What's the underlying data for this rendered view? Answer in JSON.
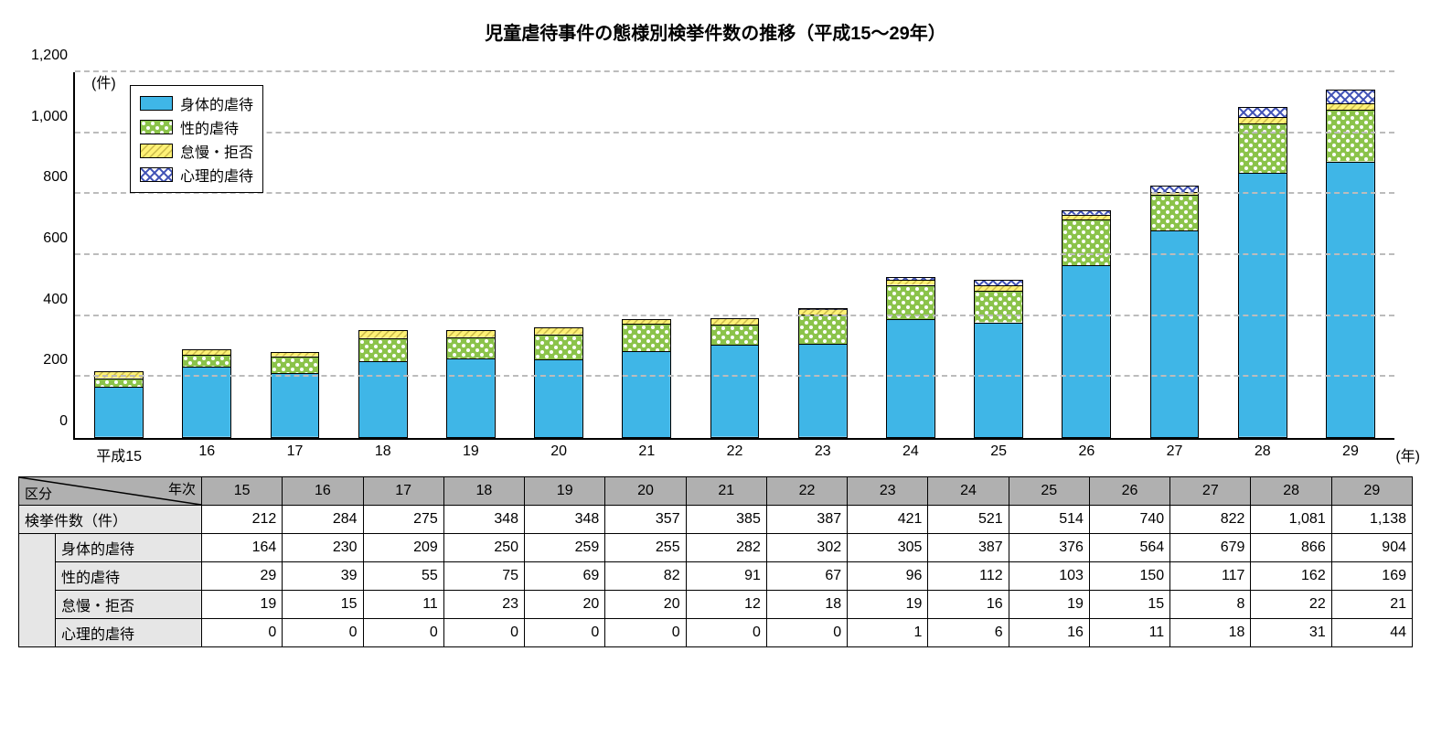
{
  "title": "児童虐待事件の態様別検挙件数の推移（平成15～29年）",
  "chart": {
    "type": "stacked-bar",
    "y_unit_label": "(件)",
    "x_unit_label": "(年)",
    "ylim": [
      0,
      1200
    ],
    "ytick_step": 200,
    "yticks": [
      "0",
      "200",
      "400",
      "600",
      "800",
      "1,000",
      "1,200"
    ],
    "grid_color": "#bcbcbc",
    "background_color": "#ffffff",
    "bar_border": "#000000",
    "x_prefix_first": "平成",
    "years": [
      "15",
      "16",
      "17",
      "18",
      "19",
      "20",
      "21",
      "22",
      "23",
      "24",
      "25",
      "26",
      "27",
      "28",
      "29"
    ],
    "series": [
      {
        "key": "physical",
        "label": "身体的虐待",
        "fill": "#3fb6e7",
        "pattern": "solid"
      },
      {
        "key": "sexual",
        "label": "性的虐待",
        "fill": "#8bc34a",
        "pattern": "dots"
      },
      {
        "key": "neglect",
        "label": "怠慢・拒否",
        "fill": "#fff176",
        "pattern": "diag"
      },
      {
        "key": "psych",
        "label": "心理的虐待",
        "fill": "#3f51b5",
        "pattern": "cross"
      }
    ],
    "values": {
      "physical": [
        164,
        230,
        209,
        250,
        259,
        255,
        282,
        302,
        305,
        387,
        376,
        564,
        679,
        866,
        904
      ],
      "sexual": [
        29,
        39,
        55,
        75,
        69,
        82,
        91,
        67,
        96,
        112,
        103,
        150,
        117,
        162,
        169
      ],
      "neglect": [
        19,
        15,
        11,
        23,
        20,
        20,
        12,
        18,
        19,
        16,
        19,
        15,
        8,
        22,
        21
      ],
      "psych": [
        0,
        0,
        0,
        0,
        0,
        0,
        0,
        0,
        1,
        6,
        16,
        11,
        18,
        31,
        44
      ]
    }
  },
  "table": {
    "corner_top": "年次",
    "corner_bottom": "区分",
    "row_total_label": "検挙件数（件）",
    "rows": [
      {
        "label": "身体的虐待",
        "cells": [
          "164",
          "230",
          "209",
          "250",
          "259",
          "255",
          "282",
          "302",
          "305",
          "387",
          "376",
          "564",
          "679",
          "866",
          "904"
        ]
      },
      {
        "label": "性的虐待",
        "cells": [
          "29",
          "39",
          "55",
          "75",
          "69",
          "82",
          "91",
          "67",
          "96",
          "112",
          "103",
          "150",
          "117",
          "162",
          "169"
        ]
      },
      {
        "label": "怠慢・拒否",
        "cells": [
          "19",
          "15",
          "11",
          "23",
          "20",
          "20",
          "12",
          "18",
          "19",
          "16",
          "19",
          "15",
          "8",
          "22",
          "21"
        ]
      },
      {
        "label": "心理的虐待",
        "cells": [
          "0",
          "0",
          "0",
          "0",
          "0",
          "0",
          "0",
          "0",
          "1",
          "6",
          "16",
          "11",
          "18",
          "31",
          "44"
        ]
      }
    ],
    "totals": [
      "212",
      "284",
      "275",
      "348",
      "348",
      "357",
      "385",
      "387",
      "421",
      "521",
      "514",
      "740",
      "822",
      "1,081",
      "1,138"
    ],
    "col_headers": [
      "15",
      "16",
      "17",
      "18",
      "19",
      "20",
      "21",
      "22",
      "23",
      "24",
      "25",
      "26",
      "27",
      "28",
      "29"
    ]
  }
}
